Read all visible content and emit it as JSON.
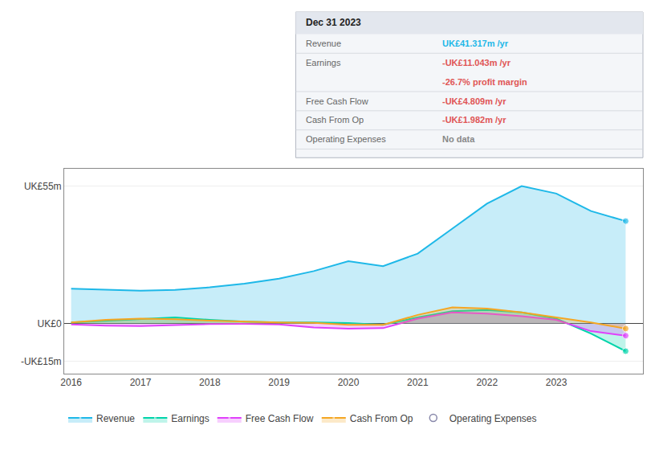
{
  "chart_data": {
    "type": "area",
    "x": [
      2016,
      2016.5,
      2017,
      2017.5,
      2018,
      2018.5,
      2019,
      2019.5,
      2020,
      2020.5,
      2021,
      2021.5,
      2022,
      2022.5,
      2023,
      2023.5,
      2024
    ],
    "xlim": [
      2015.9,
      2024.25
    ],
    "xticks": [
      2016,
      2017,
      2018,
      2019,
      2020,
      2021,
      2022,
      2023
    ],
    "ylim": [
      -20,
      62
    ],
    "yticks": [
      {
        "value": 55,
        "label": "UK£55m"
      },
      {
        "value": 0,
        "label": "UK£0"
      },
      {
        "value": -15,
        "label": "-UK£15m"
      }
    ],
    "grid": true,
    "legend": "bottom",
    "series": [
      {
        "name": "Revenue",
        "color": "#1eb8e8",
        "values": [
          14,
          13.5,
          13.2,
          13.5,
          14.5,
          16,
          18,
          21,
          25,
          23,
          28,
          38,
          48,
          55,
          52,
          45,
          41
        ]
      },
      {
        "name": "Earnings",
        "color": "#00d4aa",
        "values": [
          0.5,
          1.2,
          2.0,
          2.5,
          1.5,
          0.8,
          0.5,
          0.5,
          0.2,
          -0.5,
          2.5,
          5.0,
          5.5,
          4.5,
          2.0,
          -4.0,
          -11
        ]
      },
      {
        "name": "Free Cash Flow",
        "color": "#e040fb",
        "values": [
          -0.3,
          -0.8,
          -1.0,
          -0.5,
          -0.2,
          -0.1,
          -0.3,
          -1.5,
          -2.0,
          -1.8,
          2.0,
          4.5,
          4.0,
          3.0,
          1.5,
          -3.0,
          -4.8
        ]
      },
      {
        "name": "Cash From Op",
        "color": "#f5a623",
        "values": [
          0.5,
          1.5,
          2.0,
          1.8,
          1.2,
          0.8,
          0.5,
          0.3,
          -0.5,
          -0.5,
          3.5,
          6.5,
          6.0,
          4.5,
          2.5,
          0.5,
          -1.98
        ]
      },
      {
        "name": "Operating Expenses",
        "color": "#8888aa",
        "marker": "circle-open",
        "values": [
          null,
          null,
          null,
          null,
          null,
          null,
          null,
          null,
          null,
          null,
          null,
          null,
          null,
          null,
          null,
          null,
          null
        ]
      }
    ],
    "annotations": [
      {
        "title": "Dec 31 2023",
        "rows": [
          {
            "label": "Revenue",
            "value": "UK£41.317m /yr",
            "color": "#1eb8e8"
          },
          {
            "label": "Earnings",
            "value": "-UK£11.043m /yr",
            "sub": "-26.7% profit margin",
            "color": "#e05555"
          },
          {
            "label": "Free Cash Flow",
            "value": "-UK£4.809m /yr",
            "color": "#e05555"
          },
          {
            "label": "Cash From Op",
            "value": "-UK£1.982m /yr",
            "color": "#e05555"
          },
          {
            "label": "Operating Expenses",
            "value": "No data",
            "color": "#888888"
          }
        ]
      }
    ]
  }
}
